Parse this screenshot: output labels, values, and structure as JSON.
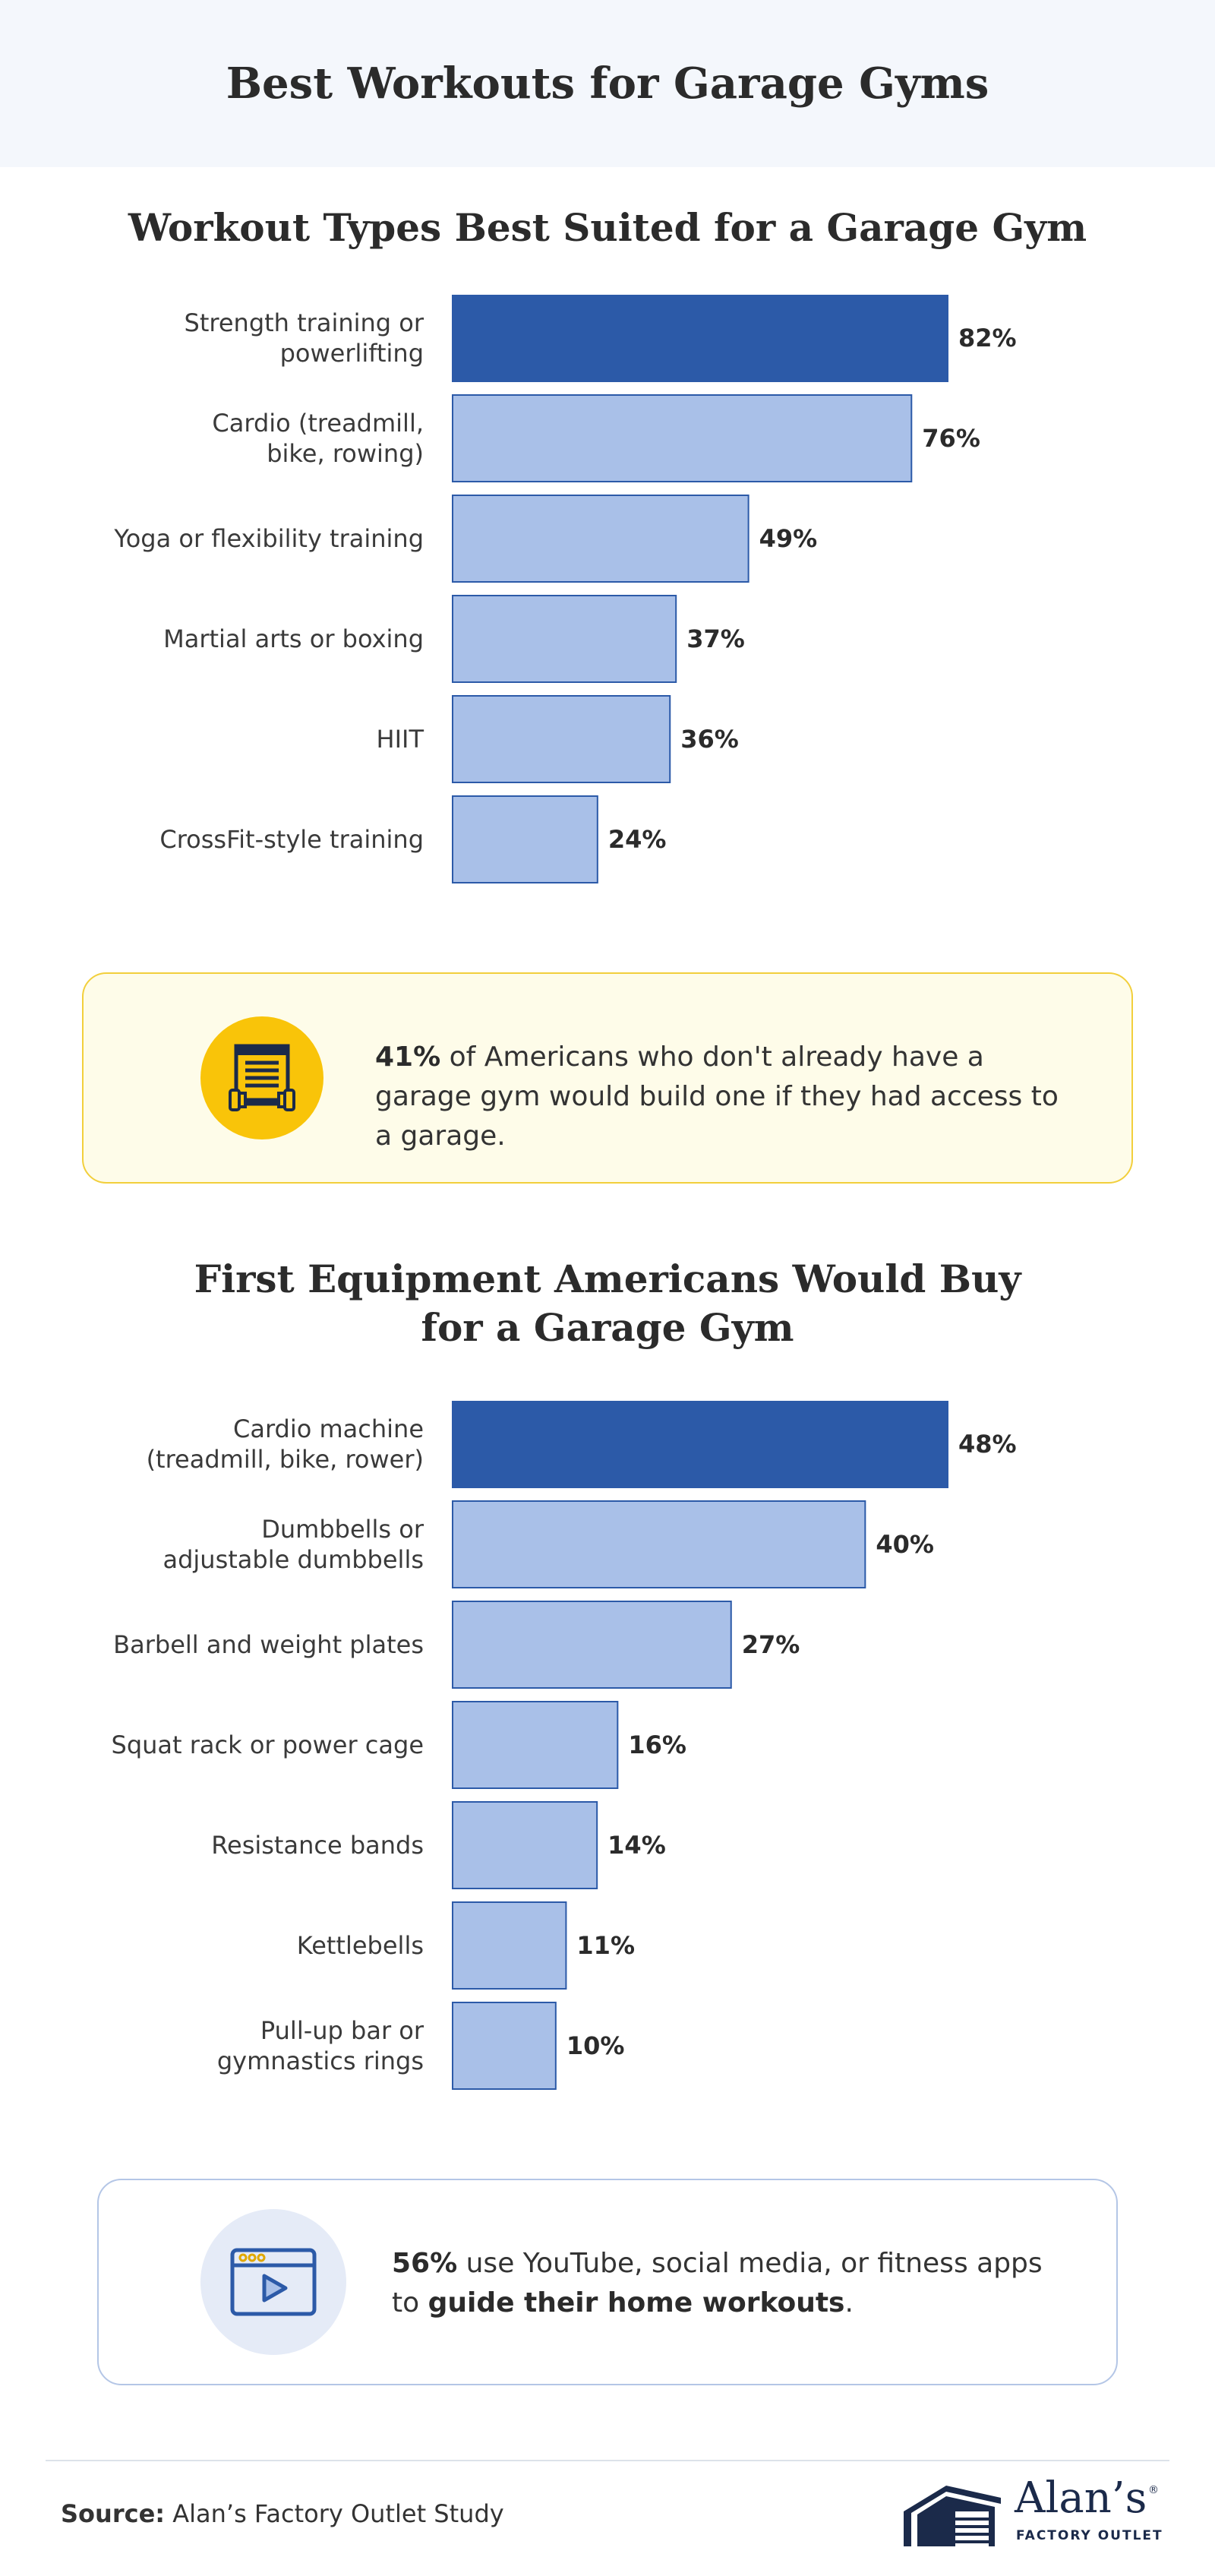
{
  "header": {
    "title": "Best Workouts for Garage Gyms"
  },
  "colors": {
    "highlight_bar": "#2c5aa8",
    "bar": "#a9c0e8",
    "bar_border": "#2c5aa8",
    "callout_yellow": "#f9c409",
    "accent_dark": "#1b2a4a"
  },
  "chart_data": [
    {
      "type": "bar",
      "orientation": "horizontal",
      "title": "Workout Types Best Suited for a Garage Gym",
      "unit": "%",
      "categories": [
        [
          "Strength training or",
          "powerlifting"
        ],
        [
          "Cardio (treadmill,",
          "bike, rowing)"
        ],
        [
          "Yoga or flexibility training"
        ],
        [
          "Martial arts or boxing"
        ],
        [
          "HIIT"
        ],
        [
          "CrossFit-style training"
        ]
      ],
      "values": [
        82,
        76,
        49,
        37,
        36,
        24
      ],
      "value_labels": [
        "82%",
        "76%",
        "49%",
        "37%",
        "36%",
        "24%"
      ],
      "highlight_index": 0,
      "xlim": [
        0,
        82
      ]
    },
    {
      "type": "bar",
      "orientation": "horizontal",
      "title": "First Equipment Americans Would Buy for a Garage Gym",
      "unit": "%",
      "categories": [
        [
          "Cardio machine",
          "(treadmill, bike, rower)"
        ],
        [
          "Dumbbells or",
          "adjustable dumbbells"
        ],
        [
          "Barbell and weight plates"
        ],
        [
          "Squat rack or power cage"
        ],
        [
          "Resistance bands"
        ],
        [
          "Kettlebells"
        ],
        [
          "Pull-up bar or",
          "gymnastics rings"
        ]
      ],
      "values": [
        48,
        40,
        27,
        16,
        14,
        11,
        10
      ],
      "value_labels": [
        "48%",
        "40%",
        "27%",
        "16%",
        "14%",
        "11%",
        "10%"
      ],
      "highlight_index": 0,
      "xlim": [
        0,
        48
      ]
    }
  ],
  "chart2_title_lines": [
    "First Equipment Americans Would Buy",
    "for a Garage Gym"
  ],
  "callout1": {
    "icon": "garage-dumbbell-icon",
    "stat": "41%",
    "text": " of Americans who don't already have a garage gym would build one if they had access to a garage."
  },
  "callout2": {
    "icon": "video-player-icon",
    "stat": "56%",
    "text_before": " use YouTube, social media, or fitness apps to ",
    "text_bold": "guide their home workouts",
    "text_after": "."
  },
  "footer": {
    "source_label": "Source:",
    "source_text": " Alan’s Factory Outlet Study",
    "logo_name": "Alan’s",
    "logo_reg": "®",
    "logo_sub": "FACTORY OUTLET"
  }
}
